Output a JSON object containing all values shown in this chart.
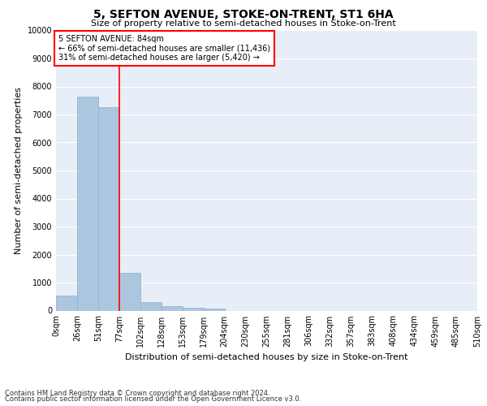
{
  "title": "5, SEFTON AVENUE, STOKE-ON-TRENT, ST1 6HA",
  "subtitle": "Size of property relative to semi-detached houses in Stoke-on-Trent",
  "xlabel": "Distribution of semi-detached houses by size in Stoke-on-Trent",
  "ylabel": "Number of semi-detached properties",
  "footnote1": "Contains HM Land Registry data © Crown copyright and database right 2024.",
  "footnote2": "Contains public sector information licensed under the Open Government Licence v3.0.",
  "annotation_line1": "5 SEFTON AVENUE: 84sqm",
  "annotation_line2": "← 66% of semi-detached houses are smaller (11,436)",
  "annotation_line3": "31% of semi-detached houses are larger (5,420) →",
  "bar_values": [
    550,
    7650,
    7250,
    1350,
    300,
    150,
    100,
    80,
    0,
    0,
    0,
    0,
    0,
    0,
    0,
    0,
    0,
    0,
    0,
    0
  ],
  "bin_labels": [
    "0sqm",
    "26sqm",
    "51sqm",
    "77sqm",
    "102sqm",
    "128sqm",
    "153sqm",
    "179sqm",
    "204sqm",
    "230sqm",
    "255sqm",
    "281sqm",
    "306sqm",
    "332sqm",
    "357sqm",
    "383sqm",
    "408sqm",
    "434sqm",
    "459sqm",
    "485sqm",
    "510sqm"
  ],
  "bar_color": "#adc6e0",
  "bar_edge_color": "#8ab0cc",
  "vline_x": 3,
  "vline_color": "red",
  "annotation_box_color": "white",
  "annotation_box_edge": "red",
  "ylim": [
    0,
    10000
  ],
  "yticks": [
    0,
    1000,
    2000,
    3000,
    4000,
    5000,
    6000,
    7000,
    8000,
    9000,
    10000
  ],
  "background_color": "#e8eef7",
  "grid_color": "white",
  "title_fontsize": 10,
  "subtitle_fontsize": 8,
  "ylabel_fontsize": 8,
  "xlabel_fontsize": 8,
  "tick_fontsize": 7,
  "annot_fontsize": 7,
  "footnote_fontsize": 6
}
